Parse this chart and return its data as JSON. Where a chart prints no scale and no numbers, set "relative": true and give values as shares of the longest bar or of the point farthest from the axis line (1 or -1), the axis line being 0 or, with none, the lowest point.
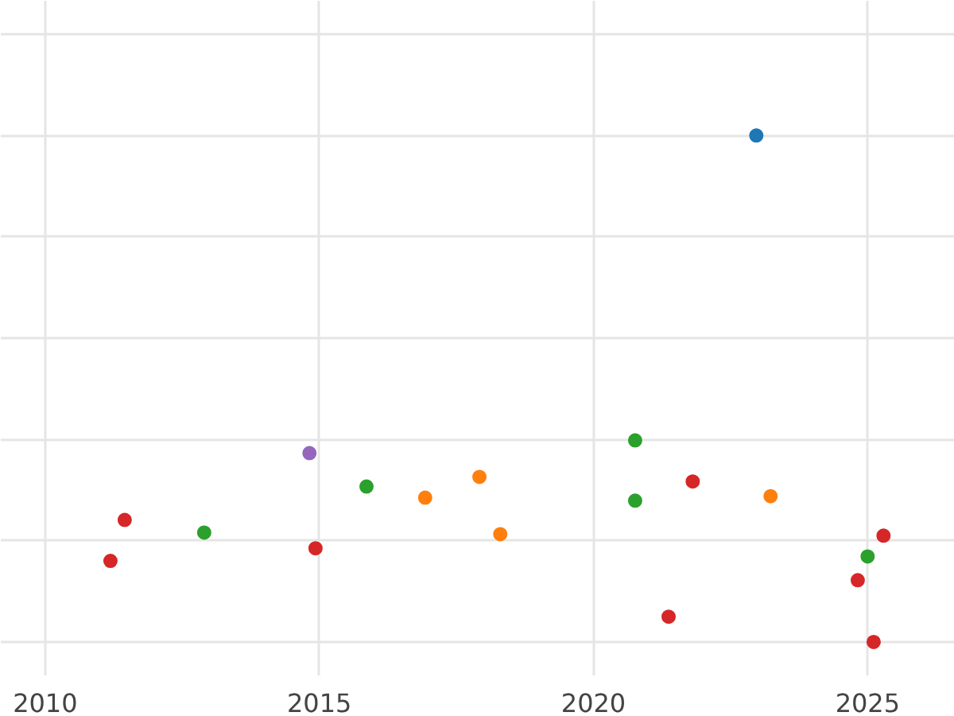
{
  "chart_data": {
    "type": "scatter",
    "relative": true,
    "grid": true,
    "marker": "circle",
    "tick_labels": "x",
    "xlim": [
      2009.19,
      2026.59
    ],
    "xticks": [
      2010,
      2015,
      2020,
      2025
    ],
    "series": [
      {
        "color": "#1f77b4",
        "x": [
          2022.97
        ],
        "values": [
          1.0
        ]
      },
      {
        "color": "#9467bd",
        "x": [
          2014.82
        ],
        "values": [
          0.373
        ]
      },
      {
        "color": "#2ca02c",
        "x": [
          2012.9,
          2015.86,
          2020.76,
          2020.76,
          2025.0
        ],
        "values": [
          0.216,
          0.307,
          0.398,
          0.279,
          0.169
        ]
      },
      {
        "color": "#ff7f0e",
        "x": [
          2016.93,
          2017.92,
          2018.3,
          2023.23
        ],
        "values": [
          0.285,
          0.326,
          0.213,
          0.288
        ]
      },
      {
        "color": "#d62728",
        "x": [
          2011.45,
          2011.19,
          2014.93,
          2021.81,
          2021.37,
          2025.29,
          2024.82,
          2025.11
        ],
        "values": [
          0.241,
          0.16,
          0.185,
          0.317,
          0.05,
          0.21,
          0.122,
          0.0
        ]
      }
    ]
  }
}
